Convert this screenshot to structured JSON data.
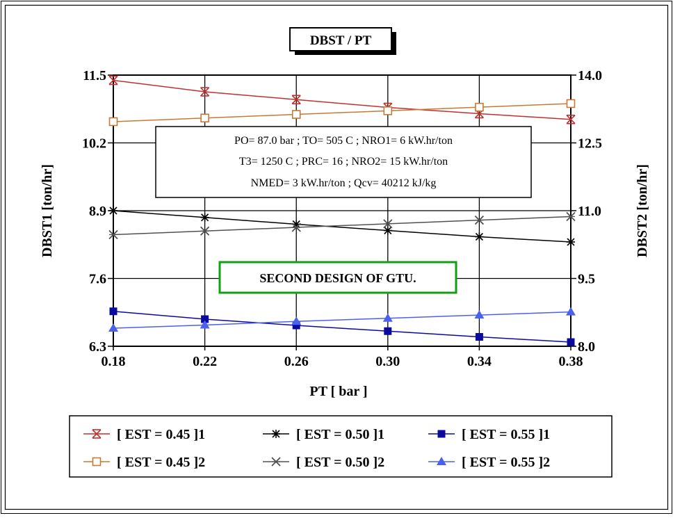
{
  "chart_data": {
    "type": "line",
    "title": "DBST / PT",
    "xlabel": "PT [ bar ]",
    "ylabel_left": "DBST1 [ton/hr]",
    "ylabel_right": "DBST2 [ton/hr]",
    "x": [
      0.18,
      0.22,
      0.26,
      0.3,
      0.34,
      0.38
    ],
    "x_ticks": [
      "0.18",
      "0.22",
      "0.26",
      "0.30",
      "0.34",
      "0.38"
    ],
    "xlim": [
      0.18,
      0.38
    ],
    "ylim_left": [
      6.3,
      11.5
    ],
    "ylim_right": [
      8.0,
      14.0
    ],
    "y_ticks_left": [
      "6.3",
      "7.6",
      "8.9",
      "10.2",
      "11.5"
    ],
    "y_ticks_right": [
      "8.0",
      "9.5",
      "11.0",
      "12.5",
      "14.0"
    ],
    "grid": true,
    "legend_position": "bottom",
    "series": [
      {
        "name": "[ EST = 0.45 ]1",
        "axis": "left",
        "color": "#c03030",
        "marker": "hourglass",
        "values": [
          11.4,
          11.18,
          11.03,
          10.88,
          10.76,
          10.65
        ]
      },
      {
        "name": "[ EST = 0.50 ]1",
        "axis": "left",
        "color": "#000000",
        "marker": "star",
        "values": [
          8.9,
          8.77,
          8.64,
          8.52,
          8.4,
          8.3
        ]
      },
      {
        "name": "[ EST = 0.55 ]1",
        "axis": "left",
        "color": "#0a0a9e",
        "marker": "square-filled",
        "values": [
          6.97,
          6.82,
          6.7,
          6.59,
          6.48,
          6.38
        ]
      },
      {
        "name": "[ EST = 0.45 ]2",
        "axis": "right",
        "color": "#c87832",
        "marker": "square-open",
        "values": [
          12.97,
          13.05,
          13.13,
          13.21,
          13.29,
          13.37
        ]
      },
      {
        "name": "[ EST = 0.50 ]2",
        "axis": "right",
        "color": "#505050",
        "marker": "x-star",
        "values": [
          10.47,
          10.55,
          10.63,
          10.71,
          10.79,
          10.87
        ]
      },
      {
        "name": "[ EST = 0.55 ]2",
        "axis": "right",
        "color": "#4a60ee",
        "marker": "triangle",
        "values": [
          8.4,
          8.47,
          8.55,
          8.62,
          8.69,
          8.76
        ]
      }
    ],
    "annotations": {
      "params": [
        "PO= 87.0 bar ; TO= 505 C ; NRO1= 6 kW.hr/ton",
        "T3= 1250 C ; PRC= 16 ; NRO2= 15 kW.hr/ton",
        "NMED= 3 kW.hr/ton  ;  Qcv= 40212 kJ/kg"
      ],
      "design_label": "SECOND DESIGN OF GTU.",
      "design_label_color": "#12a012"
    }
  }
}
